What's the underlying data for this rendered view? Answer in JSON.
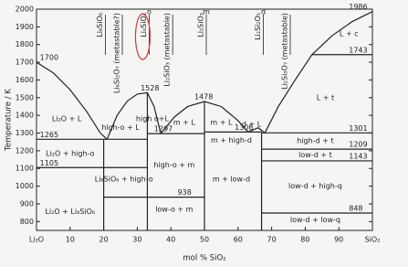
{
  "chart_data": {
    "type": "phase",
    "xlabel": "mol % SiO₂",
    "ylabel": "Temperature / K",
    "xlim": [
      0,
      100
    ],
    "ylim": [
      750,
      2000
    ],
    "xticks": [
      {
        "value": 0,
        "label": "Li₂O"
      },
      10,
      20,
      30,
      40,
      50,
      60,
      70,
      80,
      90,
      {
        "value": 100,
        "label": "SiO₂"
      }
    ],
    "yticks": [
      800,
      900,
      1000,
      1100,
      1200,
      1300,
      1400,
      1500,
      1600,
      1700,
      1800,
      1900,
      2000
    ],
    "line_color": "#222",
    "highlight_color": "#d23a3a",
    "series": [
      {
        "x": [
          0,
          5,
          10,
          15,
          19,
          21
        ],
        "y": [
          1700,
          1640,
          1545,
          1420,
          1300,
          1265
        ]
      },
      {
        "x": [
          21,
          24,
          27,
          30,
          33,
          35
        ],
        "y": [
          1265,
          1400,
          1480,
          1520,
          1528,
          1450
        ]
      },
      {
        "x": [
          35,
          37
        ],
        "y": [
          1450,
          1297
        ]
      },
      {
        "x": [
          37,
          41,
          45,
          50,
          55,
          60,
          63
        ],
        "y": [
          1297,
          1390,
          1450,
          1478,
          1450,
          1370,
          1306
        ]
      },
      {
        "x": [
          63,
          66,
          68,
          72,
          77,
          82,
          88,
          94,
          100
        ],
        "y": [
          1306,
          1330,
          1301,
          1450,
          1600,
          1743,
          1850,
          1930,
          1986
        ]
      },
      {
        "x": [
          0,
          33
        ],
        "y": [
          1265,
          1265
        ]
      },
      {
        "x": [
          0,
          33
        ],
        "y": [
          1105,
          1105
        ]
      },
      {
        "x": [
          20,
          33
        ],
        "y": [
          938,
          938
        ]
      },
      {
        "x": [
          33,
          50
        ],
        "y": [
          1297,
          1297
        ]
      },
      {
        "x": [
          33,
          50
        ],
        "y": [
          938,
          938
        ]
      },
      {
        "x": [
          50,
          67
        ],
        "y": [
          1306,
          1306
        ]
      },
      {
        "x": [
          67,
          100
        ],
        "y": [
          1301,
          1301
        ]
      },
      {
        "x": [
          67,
          100
        ],
        "y": [
          1209,
          1209
        ]
      },
      {
        "x": [
          67,
          100
        ],
        "y": [
          1143,
          1143
        ]
      },
      {
        "x": [
          67,
          100
        ],
        "y": [
          848,
          848
        ]
      },
      {
        "x": [
          82,
          100
        ],
        "y": [
          1743,
          1743
        ]
      },
      {
        "x": [
          20,
          20
        ],
        "y": [
          750,
          1265
        ]
      },
      {
        "x": [
          33,
          33
        ],
        "y": [
          750,
          1528
        ]
      },
      {
        "x": [
          50,
          50
        ],
        "y": [
          750,
          1478
        ]
      },
      {
        "x": [
          67,
          67
        ],
        "y": [
          750,
          1306
        ]
      }
    ],
    "temperature_labels": [
      {
        "x": 1,
        "value": 1700
      },
      {
        "x": 1,
        "value": 1265
      },
      {
        "x": 1,
        "value": 1105
      },
      {
        "x": 31,
        "value": 1528
      },
      {
        "x": 47,
        "value": 1478
      },
      {
        "x": 35,
        "value": 1297
      },
      {
        "x": 59,
        "value": 1306
      },
      {
        "x": 42,
        "value": 938
      },
      {
        "x": 93,
        "value": 1986
      },
      {
        "x": 93,
        "value": 1743
      },
      {
        "x": 93,
        "value": 1301
      },
      {
        "x": 93,
        "value": 1209
      },
      {
        "x": 93,
        "value": 1143
      },
      {
        "x": 93,
        "value": 848
      }
    ],
    "region_labels": [
      {
        "text": "Li₂O + L",
        "x": 9,
        "y": 1380
      },
      {
        "text": "high-o + L",
        "x": 25,
        "y": 1330
      },
      {
        "text": "Li₂O + high-o",
        "x": 10,
        "y": 1185
      },
      {
        "text": "Li₂O + Li₈SiO₆",
        "x": 10,
        "y": 855
      },
      {
        "text": "Li₈SiO₆ + high-o",
        "x": 26,
        "y": 1040
      },
      {
        "text": "high o+L",
        "x": 34.5,
        "y": 1380
      },
      {
        "text": "high-o + m",
        "x": 41,
        "y": 1120
      },
      {
        "text": "low-o + m",
        "x": 41,
        "y": 870
      },
      {
        "text": "m + L",
        "x": 44,
        "y": 1360
      },
      {
        "text": "m + L",
        "x": 55,
        "y": 1360
      },
      {
        "text": "d + L",
        "x": 64,
        "y": 1350
      },
      {
        "text": "m + high-d",
        "x": 58,
        "y": 1260
      },
      {
        "text": "m + low-d",
        "x": 58,
        "y": 1040
      },
      {
        "text": "L + t",
        "x": 86,
        "y": 1500
      },
      {
        "text": "L + c",
        "x": 93,
        "y": 1860
      },
      {
        "text": "high-d + t",
        "x": 83,
        "y": 1255
      },
      {
        "text": "low-d + t",
        "x": 83,
        "y": 1176
      },
      {
        "text": "low-d + high-q",
        "x": 83,
        "y": 1000
      },
      {
        "text": "low-d + low-q",
        "x": 83,
        "y": 810
      }
    ],
    "compounds": [
      {
        "text": "Li₈SiO₆",
        "x": 20
      },
      {
        "text": "Li₆Si₂O₇ (metastable?)",
        "x": 25
      },
      {
        "text": "Li₄SiO₄",
        "x": 33,
        "highlight": true
      },
      {
        "text": "Li₂SiO₃ (metastable)",
        "x": 40
      },
      {
        "text": "Li₂SiO₃",
        "x": 50
      },
      {
        "text": "Li₂Si₂O₅",
        "x": 67
      },
      {
        "text": "Li₂Si₃O₇ (metastable)",
        "x": 75
      }
    ],
    "phase_letters": [
      {
        "text": "o",
        "x": 33
      },
      {
        "text": "m",
        "x": 50
      },
      {
        "text": "d",
        "x": 67
      }
    ]
  }
}
